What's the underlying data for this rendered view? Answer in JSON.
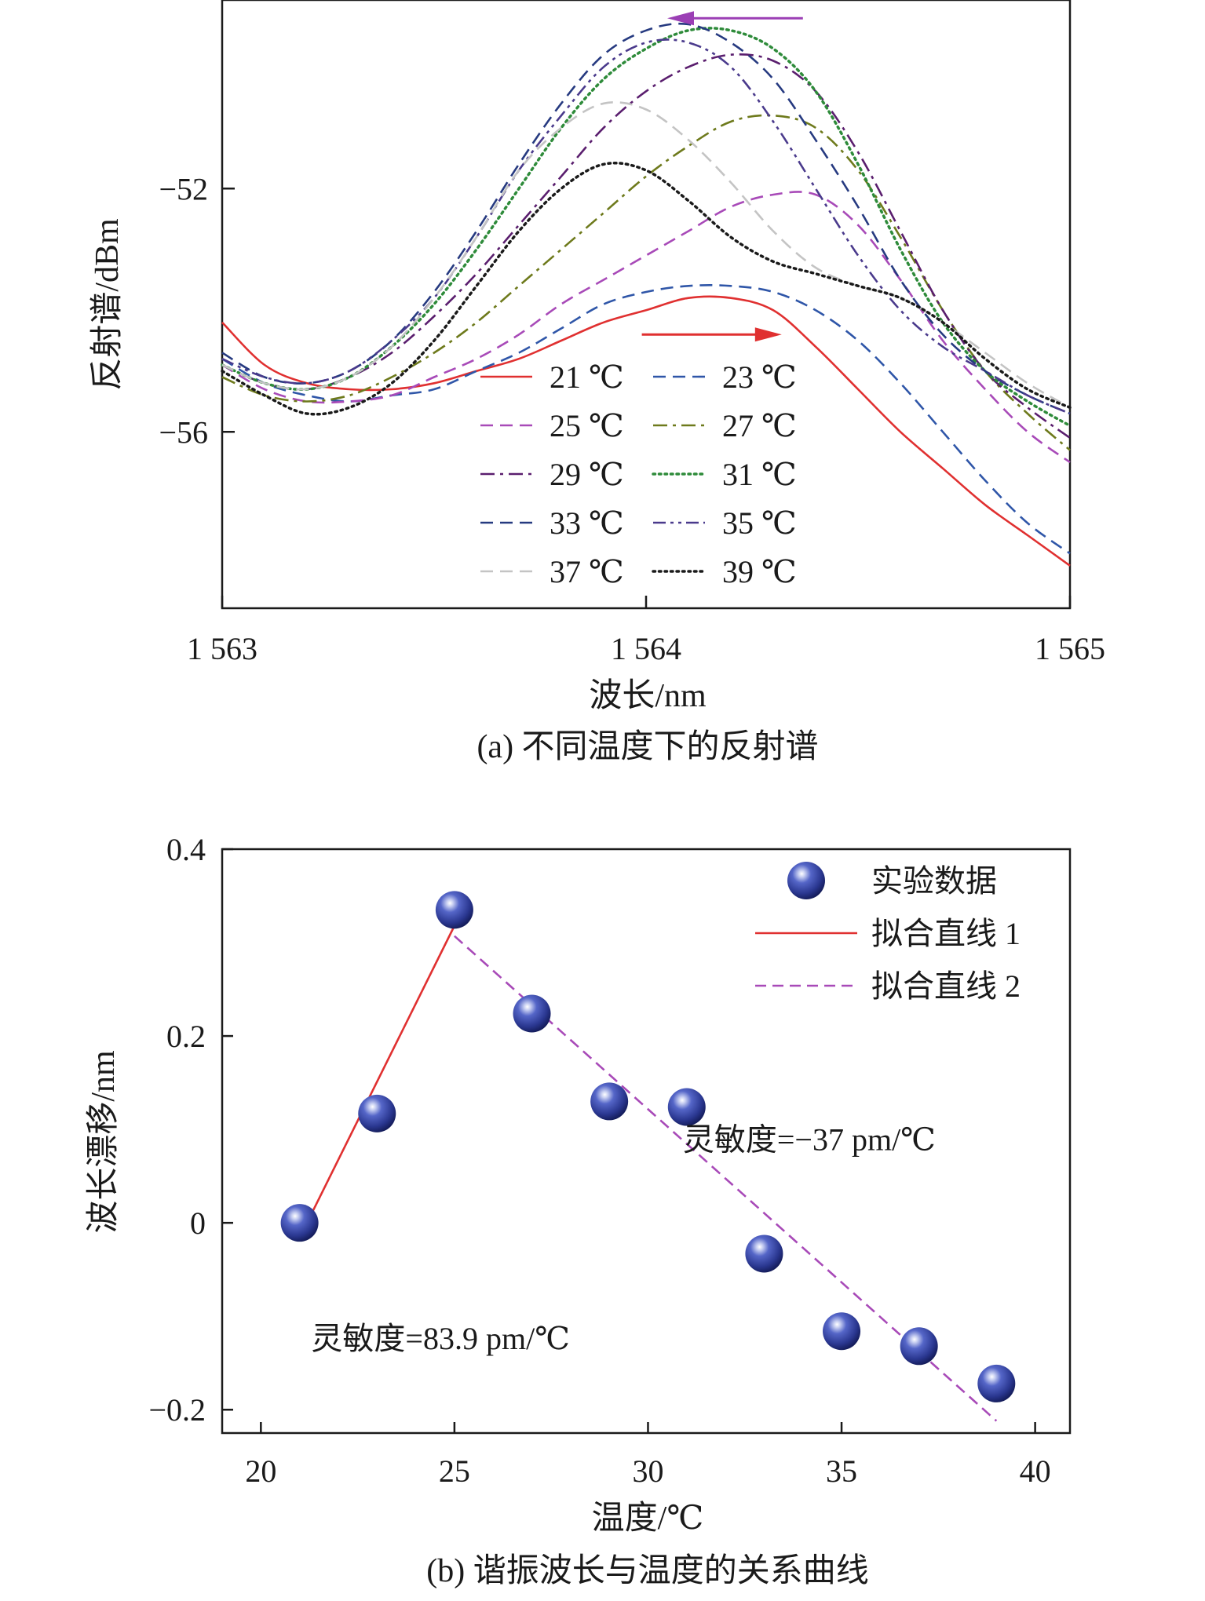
{
  "panel_a": {
    "caption": "(a) 不同温度下的反射谱",
    "chart_data": {
      "type": "line",
      "xlabel": "波长/nm",
      "ylabel": "反射谱/dBm",
      "xlim": [
        1563,
        1565
      ],
      "ylim": [
        -58.9,
        -48.9
      ],
      "xticks": [
        "1 563",
        "1 564",
        "1 565"
      ],
      "yticks": [
        "−52",
        "−56"
      ],
      "legend_position": "bottom-center",
      "series": [
        {
          "name": "21 ℃",
          "color": "#e03030",
          "style": "solid",
          "x": [
            1563.0,
            1563.1,
            1563.2,
            1563.3,
            1563.4,
            1563.5,
            1563.6,
            1563.7,
            1563.8,
            1563.9,
            1564.0,
            1564.1,
            1564.2,
            1564.3,
            1564.4,
            1564.5,
            1564.6,
            1564.7,
            1564.8,
            1564.9,
            1565.0
          ],
          "y": [
            -54.2,
            -54.9,
            -55.2,
            -55.3,
            -55.3,
            -55.2,
            -55.0,
            -54.8,
            -54.5,
            -54.2,
            -54.0,
            -53.8,
            -53.8,
            -54.0,
            -54.6,
            -55.3,
            -56.0,
            -56.6,
            -57.2,
            -57.7,
            -58.2
          ]
        },
        {
          "name": "23 ℃",
          "color": "#2f56a8",
          "style": "dashed",
          "x": [
            1563.0,
            1563.1,
            1563.2,
            1563.3,
            1563.4,
            1563.5,
            1563.6,
            1563.7,
            1563.8,
            1563.9,
            1564.0,
            1564.1,
            1564.2,
            1564.3,
            1564.4,
            1564.5,
            1564.6,
            1564.7,
            1564.8,
            1564.9,
            1565.0
          ],
          "y": [
            -54.8,
            -55.2,
            -55.4,
            -55.5,
            -55.4,
            -55.3,
            -55.0,
            -54.7,
            -54.3,
            -53.9,
            -53.7,
            -53.6,
            -53.6,
            -53.7,
            -54.0,
            -54.5,
            -55.2,
            -56.0,
            -56.8,
            -57.5,
            -58.0
          ]
        },
        {
          "name": "25 ℃",
          "color": "#a84ab8",
          "style": "dashed",
          "x": [
            1563.0,
            1563.1,
            1563.2,
            1563.3,
            1563.4,
            1563.5,
            1563.6,
            1563.7,
            1563.8,
            1563.9,
            1564.0,
            1564.1,
            1564.2,
            1564.3,
            1564.4,
            1564.5,
            1564.6,
            1564.7,
            1564.8,
            1564.9,
            1565.0
          ],
          "y": [
            -54.9,
            -55.3,
            -55.5,
            -55.5,
            -55.4,
            -55.1,
            -54.8,
            -54.4,
            -53.9,
            -53.5,
            -53.1,
            -52.7,
            -52.3,
            -52.1,
            -52.1,
            -52.6,
            -53.5,
            -54.5,
            -55.3,
            -56.0,
            -56.5
          ]
        },
        {
          "name": "27 ℃",
          "color": "#6e7a1c",
          "style": "dashdot",
          "x": [
            1563.0,
            1563.1,
            1563.2,
            1563.3,
            1563.4,
            1563.5,
            1563.6,
            1563.7,
            1563.8,
            1563.9,
            1564.0,
            1564.1,
            1564.2,
            1564.3,
            1564.4,
            1564.5,
            1564.6,
            1564.7,
            1564.8,
            1564.9,
            1565.0
          ],
          "y": [
            -55.1,
            -55.4,
            -55.5,
            -55.4,
            -55.1,
            -54.7,
            -54.2,
            -53.6,
            -53.0,
            -52.4,
            -51.8,
            -51.3,
            -50.9,
            -50.8,
            -51.0,
            -51.7,
            -52.8,
            -54.0,
            -55.0,
            -55.7,
            -56.3
          ]
        },
        {
          "name": "29 ℃",
          "color": "#5a1e6e",
          "style": "dashdot",
          "x": [
            1563.0,
            1563.1,
            1563.2,
            1563.3,
            1563.4,
            1563.5,
            1563.6,
            1563.7,
            1563.8,
            1563.9,
            1564.0,
            1564.1,
            1564.2,
            1564.3,
            1564.4,
            1564.5,
            1564.6,
            1564.7,
            1564.8,
            1564.9,
            1565.0
          ],
          "y": [
            -54.9,
            -55.2,
            -55.3,
            -55.1,
            -54.7,
            -54.1,
            -53.4,
            -52.6,
            -51.8,
            -51.0,
            -50.4,
            -50.0,
            -49.8,
            -49.9,
            -50.4,
            -51.4,
            -52.7,
            -54.0,
            -55.0,
            -55.6,
            -56.1
          ]
        },
        {
          "name": "31 ℃",
          "color": "#2e8b3a",
          "style": "dotted",
          "x": [
            1563.0,
            1563.1,
            1563.2,
            1563.3,
            1563.4,
            1563.5,
            1563.6,
            1563.7,
            1563.8,
            1563.9,
            1564.0,
            1564.1,
            1564.2,
            1564.3,
            1564.4,
            1564.5,
            1564.6,
            1564.7,
            1564.8,
            1564.9,
            1565.0
          ],
          "y": [
            -54.9,
            -55.2,
            -55.3,
            -55.1,
            -54.6,
            -53.9,
            -53.0,
            -52.0,
            -51.0,
            -50.2,
            -49.7,
            -49.4,
            -49.4,
            -49.7,
            -50.4,
            -51.6,
            -53.0,
            -54.2,
            -55.0,
            -55.5,
            -55.9
          ]
        },
        {
          "name": "33 ℃",
          "color": "#263a80",
          "style": "dashed",
          "x": [
            1563.0,
            1563.1,
            1563.2,
            1563.3,
            1563.4,
            1563.5,
            1563.6,
            1563.7,
            1563.8,
            1563.9,
            1564.0,
            1564.1,
            1564.2,
            1564.3,
            1564.4,
            1564.5,
            1564.6,
            1564.7,
            1564.8,
            1564.9,
            1565.0
          ],
          "y": [
            -54.7,
            -55.1,
            -55.2,
            -55.0,
            -54.5,
            -53.7,
            -52.7,
            -51.6,
            -50.6,
            -49.8,
            -49.4,
            -49.3,
            -49.6,
            -50.2,
            -51.2,
            -52.3,
            -53.5,
            -54.4,
            -55.0,
            -55.4,
            -55.7
          ]
        },
        {
          "name": "35 ℃",
          "color": "#4a3a8c",
          "style": "dashdotdot",
          "x": [
            1563.0,
            1563.1,
            1563.2,
            1563.3,
            1563.4,
            1563.5,
            1563.6,
            1563.7,
            1563.8,
            1563.9,
            1564.0,
            1564.1,
            1564.2,
            1564.3,
            1564.4,
            1564.5,
            1564.6,
            1564.7,
            1564.8,
            1564.9,
            1565.0
          ],
          "y": [
            -54.8,
            -55.1,
            -55.2,
            -55.0,
            -54.5,
            -53.8,
            -52.8,
            -51.7,
            -50.8,
            -50.0,
            -49.6,
            -49.6,
            -50.0,
            -50.9,
            -52.0,
            -53.1,
            -54.0,
            -54.6,
            -55.0,
            -55.4,
            -55.7
          ]
        },
        {
          "name": "37 ℃",
          "color": "#c4c4c4",
          "style": "dashed",
          "x": [
            1563.0,
            1563.1,
            1563.2,
            1563.3,
            1563.4,
            1563.5,
            1563.6,
            1563.7,
            1563.8,
            1563.9,
            1564.0,
            1564.1,
            1564.2,
            1564.3,
            1564.4,
            1564.5,
            1564.6,
            1564.7,
            1564.8,
            1564.9,
            1565.0
          ],
          "y": [
            -54.9,
            -55.2,
            -55.3,
            -55.1,
            -54.6,
            -53.8,
            -52.8,
            -51.7,
            -51.0,
            -50.6,
            -50.7,
            -51.2,
            -51.9,
            -52.7,
            -53.3,
            -53.6,
            -53.8,
            -54.2,
            -54.7,
            -55.2,
            -55.6
          ]
        },
        {
          "name": "39 ℃",
          "color": "#1a1a1a",
          "style": "dotted",
          "x": [
            1563.0,
            1563.1,
            1563.2,
            1563.3,
            1563.4,
            1563.5,
            1563.6,
            1563.7,
            1563.8,
            1563.9,
            1564.0,
            1564.1,
            1564.2,
            1564.3,
            1564.4,
            1564.5,
            1564.6,
            1564.7,
            1564.8,
            1564.9,
            1565.0
          ],
          "y": [
            -55.0,
            -55.4,
            -55.7,
            -55.6,
            -55.2,
            -54.5,
            -53.6,
            -52.7,
            -52.0,
            -51.6,
            -51.7,
            -52.2,
            -52.8,
            -53.2,
            -53.4,
            -53.6,
            -53.8,
            -54.2,
            -54.8,
            -55.3,
            -55.6
          ]
        }
      ],
      "arrows": [
        {
          "color": "#9b3fb5",
          "direction": "left",
          "x_from": 1564.37,
          "x_to": 1564.05,
          "y": -49.2
        },
        {
          "color": "#e03030",
          "direction": "right",
          "x_from": 1563.99,
          "x_to": 1564.32,
          "y": -54.4
        }
      ]
    }
  },
  "panel_b": {
    "caption": "(b) 谐振波长与温度的关系曲线",
    "chart_data": {
      "type": "scatter",
      "xlabel": "温度/℃",
      "ylabel": "波长漂移/nm",
      "xlim": [
        19,
        40.9
      ],
      "ylim": [
        -0.225,
        0.4
      ],
      "xticks": [
        "20",
        "25",
        "30",
        "35",
        "40"
      ],
      "yticks": [
        "0.4",
        "0.2",
        "0",
        "−0.2"
      ],
      "legend_position": "top-right",
      "points": {
        "name": "实验数据",
        "color": "#2c3e96",
        "x": [
          21,
          23,
          25,
          27,
          29,
          31,
          33,
          35,
          37,
          39
        ],
        "y": [
          0.0,
          0.117,
          0.335,
          0.224,
          0.13,
          0.124,
          -0.033,
          -0.116,
          -0.132,
          -0.172
        ]
      },
      "fits": [
        {
          "name": "拟合直线 1",
          "color": "#e03030",
          "style": "solid",
          "x": [
            21,
            25
          ],
          "y": [
            -0.016,
            0.318
          ]
        },
        {
          "name": "拟合直线 2",
          "color": "#a84ab8",
          "style": "dashed",
          "x": [
            25,
            39
          ],
          "y": [
            0.307,
            -0.212
          ]
        }
      ],
      "annotations": [
        {
          "text": "灵敏度=−37 pm/℃",
          "x": 30.9,
          "y": 0.078
        },
        {
          "text": "灵敏度=83.9 pm/℃",
          "x": 21.3,
          "y": -0.135
        }
      ]
    }
  }
}
